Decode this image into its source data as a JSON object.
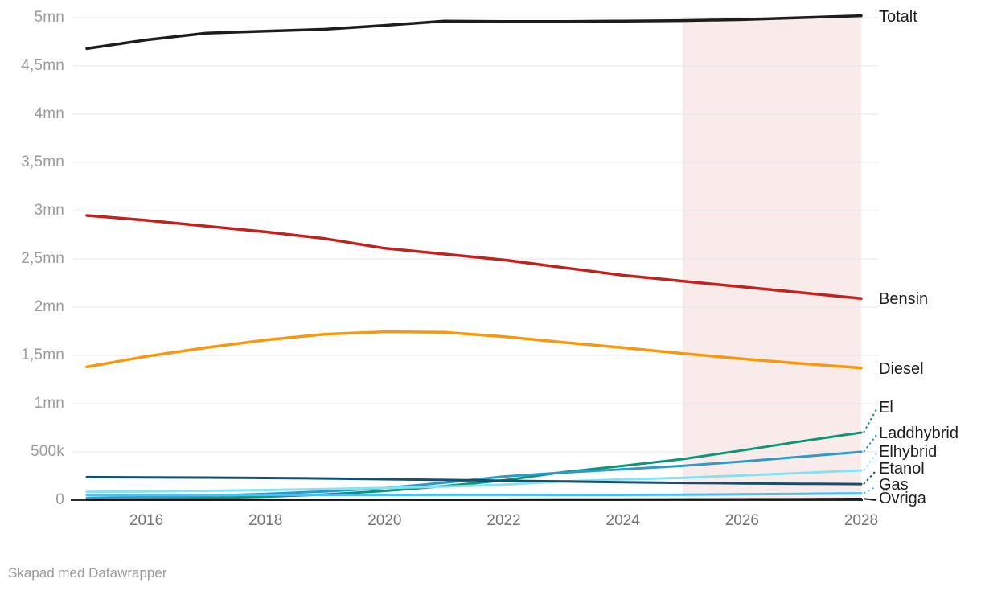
{
  "chart_data": {
    "type": "line",
    "title": "",
    "xlabel": "",
    "ylabel": "",
    "x": [
      2015,
      2016,
      2017,
      2018,
      2019,
      2020,
      2021,
      2022,
      2023,
      2024,
      2025,
      2026,
      2027,
      2028
    ],
    "unit_note": "values in thousands of vehicles (k); mn = million",
    "ylim_k": [
      0,
      5000
    ],
    "grid": "horizontal",
    "legend_position": "right-inline-labels",
    "forecast_region": {
      "from": 2025,
      "to": 2028,
      "color": "#f9ebea"
    },
    "y_ticks": [
      {
        "label": "5mn",
        "v": 5000
      },
      {
        "label": "4,5mn",
        "v": 4500
      },
      {
        "label": "4mn",
        "v": 4000
      },
      {
        "label": "3,5mn",
        "v": 3500
      },
      {
        "label": "3mn",
        "v": 3000
      },
      {
        "label": "2,5mn",
        "v": 2500
      },
      {
        "label": "2mn",
        "v": 2000
      },
      {
        "label": "1,5mn",
        "v": 1500
      },
      {
        "label": "1mn",
        "v": 1000
      },
      {
        "label": "500k",
        "v": 500
      },
      {
        "label": "0",
        "v": 0
      }
    ],
    "x_ticks": [
      2016,
      2018,
      2020,
      2022,
      2024,
      2026,
      2028
    ],
    "series": [
      {
        "name": "Totalt",
        "color": "#1d1d1d",
        "width": 3.5,
        "values_k": [
          4680,
          4770,
          4840,
          4860,
          4880,
          4920,
          4965,
          4960,
          4960,
          4965,
          4970,
          4980,
          5000,
          5020
        ]
      },
      {
        "name": "Bensin",
        "color": "#c1221e",
        "width": 3.5,
        "values_k": [
          2950,
          2900,
          2840,
          2780,
          2710,
          2610,
          2550,
          2490,
          2410,
          2330,
          2270,
          2210,
          2150,
          2090
        ]
      },
      {
        "name": "Diesel",
        "color": "#f8990d",
        "width": 3.5,
        "values_k": [
          1380,
          1490,
          1580,
          1660,
          1720,
          1745,
          1740,
          1695,
          1635,
          1580,
          1520,
          1465,
          1415,
          1370
        ]
      },
      {
        "name": "El",
        "color": "#0c9576",
        "width": 3,
        "values_k": [
          8,
          13,
          21,
          35,
          58,
          95,
          145,
          205,
          290,
          355,
          425,
          515,
          610,
          700
        ]
      },
      {
        "name": "Laddhybrid",
        "color": "#2e9ac9",
        "width": 3,
        "values_k": [
          20,
          30,
          45,
          65,
          90,
          125,
          180,
          245,
          285,
          320,
          355,
          400,
          450,
          500
        ]
      },
      {
        "name": "Elhybrid",
        "color": "#85e2f4",
        "width": 3,
        "values_k": [
          85,
          90,
          96,
          104,
          114,
          126,
          140,
          160,
          195,
          215,
          232,
          255,
          282,
          308
        ]
      },
      {
        "name": "Etanol",
        "color": "#17506e",
        "width": 3,
        "values_k": [
          238,
          236,
          233,
          229,
          224,
          217,
          209,
          201,
          193,
          185,
          178,
          173,
          169,
          166
        ]
      },
      {
        "name": "Gas",
        "color": "#49c0ef",
        "width": 3,
        "values_k": [
          50,
          51,
          52,
          53,
          54,
          54,
          55,
          55,
          54,
          54,
          56,
          60,
          65,
          70
        ]
      },
      {
        "name": "Övriga",
        "color": "#141414",
        "width": 2.5,
        "values_k": [
          5,
          5,
          5,
          6,
          6,
          6,
          7,
          7,
          8,
          8,
          9,
          10,
          12,
          15
        ]
      }
    ],
    "colors": {
      "gridline": "#e9e9e9",
      "baseline": "#2b2b2b",
      "y_tick_text": "#9b9b9b",
      "x_tick_text": "#757575",
      "series_label_text": "#1d1d1d"
    }
  },
  "labels": {
    "footer": "Skapad med Datawrapper"
  }
}
